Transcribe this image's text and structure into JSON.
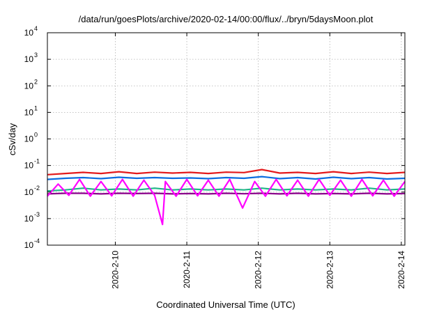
{
  "chart_data": {
    "type": "line",
    "title": "/data/run/goesPlots/archive/2020-02-14/00:00/flux/../bryn/5daysMoon.plot",
    "xlabel": "Coordinated Universal Time (UTC)",
    "ylabel": "cSv/day",
    "yscale": "log",
    "ylim": [
      0.0001,
      10000
    ],
    "xlim": [
      9.05,
      14.05
    ],
    "y_ticks": [
      {
        "base": "10",
        "exp": "4"
      },
      {
        "base": "10",
        "exp": "3"
      },
      {
        "base": "10",
        "exp": "2"
      },
      {
        "base": "10",
        "exp": "1"
      },
      {
        "base": "10",
        "exp": "0"
      },
      {
        "base": "10",
        "exp": "-1"
      },
      {
        "base": "10",
        "exp": "-2"
      },
      {
        "base": "10",
        "exp": "-3"
      },
      {
        "base": "10",
        "exp": "-4"
      }
    ],
    "x_ticks": [
      {
        "label": "2020-2-10",
        "x": 10
      },
      {
        "label": "2020-2-11",
        "x": 11
      },
      {
        "label": "2020-2-12",
        "x": 12
      },
      {
        "label": "2020-2-13",
        "x": 13
      },
      {
        "label": "2020-2-14",
        "x": 14
      }
    ],
    "grid": true,
    "series_colors": [
      "#e31a1c",
      "#8b008b",
      "#1fb587",
      "#0b6de0",
      "#ff00ff"
    ],
    "series": [
      {
        "color": "#e31a1c",
        "x": [
          9.05,
          9.3,
          9.55,
          9.8,
          10.05,
          10.3,
          10.55,
          10.8,
          11.05,
          11.3,
          11.55,
          11.8,
          12.05,
          12.3,
          12.55,
          12.8,
          13.05,
          13.3,
          13.55,
          13.8,
          14.05
        ],
        "values": [
          0.045,
          0.05,
          0.055,
          0.05,
          0.058,
          0.05,
          0.056,
          0.052,
          0.055,
          0.05,
          0.056,
          0.054,
          0.07,
          0.052,
          0.055,
          0.05,
          0.058,
          0.05,
          0.056,
          0.05,
          0.055
        ]
      },
      {
        "color": "#0b6de0",
        "x": [
          9.05,
          9.3,
          9.55,
          9.8,
          10.05,
          10.3,
          10.55,
          10.8,
          11.05,
          11.3,
          11.55,
          11.8,
          12.05,
          12.3,
          12.55,
          12.8,
          13.05,
          13.3,
          13.55,
          13.8,
          14.05
        ],
        "values": [
          0.03,
          0.033,
          0.035,
          0.032,
          0.036,
          0.033,
          0.035,
          0.033,
          0.034,
          0.032,
          0.035,
          0.033,
          0.038,
          0.032,
          0.035,
          0.031,
          0.036,
          0.032,
          0.035,
          0.031,
          0.033
        ]
      },
      {
        "color": "#1fb587",
        "x": [
          9.05,
          9.3,
          9.55,
          9.8,
          10.05,
          10.3,
          10.55,
          10.8,
          11.05,
          11.3,
          11.55,
          11.8,
          12.05,
          12.3,
          12.55,
          12.8,
          13.05,
          13.3,
          13.55,
          13.8,
          14.05
        ],
        "values": [
          0.011,
          0.012,
          0.014,
          0.012,
          0.013,
          0.012,
          0.014,
          0.012,
          0.013,
          0.012,
          0.013,
          0.012,
          0.014,
          0.012,
          0.013,
          0.012,
          0.013,
          0.012,
          0.014,
          0.012,
          0.013
        ]
      },
      {
        "color": "#8b008b",
        "x": [
          9.05,
          9.3,
          9.55,
          9.8,
          10.05,
          10.3,
          10.55,
          10.8,
          11.05,
          11.3,
          11.55,
          11.8,
          12.05,
          12.3,
          12.55,
          12.8,
          13.05,
          13.3,
          13.55,
          13.8,
          14.05
        ],
        "values": [
          0.0085,
          0.009,
          0.009,
          0.0085,
          0.009,
          0.0088,
          0.009,
          0.0085,
          0.0088,
          0.0085,
          0.009,
          0.0086,
          0.009,
          0.0085,
          0.009,
          0.0085,
          0.0088,
          0.0085,
          0.009,
          0.0085,
          0.0088
        ]
      },
      {
        "color": "#ff00ff",
        "x": [
          9.05,
          9.2,
          9.35,
          9.5,
          9.65,
          9.8,
          9.95,
          10.1,
          10.25,
          10.4,
          10.55,
          10.66,
          10.7,
          10.85,
          11.0,
          11.15,
          11.3,
          11.45,
          11.6,
          11.78,
          11.95,
          12.1,
          12.25,
          12.4,
          12.55,
          12.7,
          12.85,
          13.0,
          13.15,
          13.3,
          13.45,
          13.6,
          13.75,
          13.9,
          14.05
        ],
        "values": [
          0.007,
          0.02,
          0.0075,
          0.03,
          0.007,
          0.025,
          0.0072,
          0.03,
          0.007,
          0.028,
          0.0075,
          0.0006,
          0.025,
          0.007,
          0.03,
          0.0072,
          0.028,
          0.007,
          0.03,
          0.0025,
          0.025,
          0.007,
          0.03,
          0.0072,
          0.028,
          0.007,
          0.03,
          0.0075,
          0.028,
          0.007,
          0.03,
          0.0072,
          0.028,
          0.007,
          0.025
        ]
      }
    ]
  }
}
